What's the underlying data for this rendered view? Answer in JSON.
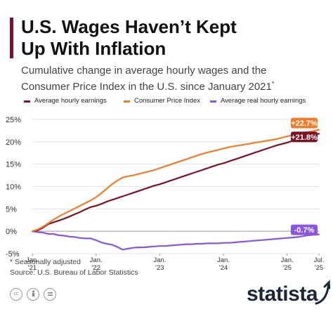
{
  "header": {
    "title_line1": "U.S. Wages Haven’t Kept",
    "title_line2": "Up With Inflation",
    "subtitle_line1": "Cumulative change in average hourly wages and the",
    "subtitle_line2": "Consumer Price Index in the U.S. since January 2021",
    "subtitle_mark": "*"
  },
  "colors": {
    "accent_bar": "#7b1326",
    "wages": "#7b1326",
    "cpi": "#f07c2b",
    "real": "#8a55e0"
  },
  "chart_data": {
    "type": "line",
    "title": "U.S. Wages Haven’t Kept Up With Inflation",
    "subtitle": "Cumulative change in average hourly wages and the Consumer Price Index in the U.S. since January 2021*",
    "xlabel": "",
    "ylabel": "",
    "ylim": [
      -5,
      25
    ],
    "yticks": [
      -5,
      0,
      5,
      10,
      15,
      20,
      25
    ],
    "ytick_labels": [
      "-5%",
      "0%",
      "5%",
      "10%",
      "15%",
      "20%",
      "25%"
    ],
    "xticks": [
      {
        "x": 0,
        "label": [
          "Jan.",
          "'21"
        ]
      },
      {
        "x": 12,
        "label": [
          "Jan.",
          "'22"
        ]
      },
      {
        "x": 24,
        "label": [
          "Jan.",
          "'23"
        ]
      },
      {
        "x": 36,
        "label": [
          "Jan.",
          "'24"
        ]
      },
      {
        "x": 48,
        "label": [
          "Jan.",
          "'25"
        ]
      },
      {
        "x": 54,
        "label": [
          "Jul.",
          "'25"
        ]
      }
    ],
    "x_range": [
      0,
      54
    ],
    "grid": true,
    "legend_position": "top",
    "series": [
      {
        "name": "Average hourly earnings",
        "color": "#7b1326",
        "values": [
          0,
          0.2,
          0.8,
          1.6,
          2.0,
          2.4,
          2.8,
          3.3,
          3.8,
          4.3,
          4.9,
          5.4,
          5.7,
          6.1,
          6.6,
          7.0,
          7.4,
          7.8,
          8.2,
          8.6,
          9.0,
          9.4,
          9.8,
          10.2,
          10.5,
          10.9,
          11.3,
          11.7,
          12.1,
          12.5,
          12.9,
          13.3,
          13.7,
          14.1,
          14.5,
          14.9,
          15.2,
          15.6,
          16.0,
          16.4,
          16.8,
          17.2,
          17.6,
          18.0,
          18.4,
          18.8,
          19.2,
          19.5,
          19.8,
          20.2,
          20.6,
          21.0,
          21.3,
          21.6,
          21.8
        ],
        "end_label": "+21.8%"
      },
      {
        "name": "Consumer Price Index",
        "color": "#f07c2b",
        "values": [
          0,
          0.4,
          1.0,
          1.8,
          2.6,
          3.3,
          3.9,
          4.5,
          5.1,
          5.7,
          6.3,
          6.9,
          7.6,
          8.5,
          9.5,
          10.5,
          11.3,
          12.0,
          12.3,
          12.5,
          12.8,
          13.1,
          13.4,
          13.7,
          14.1,
          14.5,
          14.9,
          15.3,
          15.7,
          16.1,
          16.5,
          16.9,
          17.3,
          17.6,
          17.9,
          18.2,
          18.5,
          18.8,
          19.0,
          19.2,
          19.4,
          19.6,
          19.8,
          20.0,
          20.2,
          20.4,
          20.6,
          20.9,
          21.2,
          21.5,
          21.8,
          22.0,
          22.2,
          22.4,
          22.7
        ],
        "end_label": "+22.7%"
      },
      {
        "name": "Average real hourly earnings",
        "color": "#8a55e0",
        "values": [
          0,
          -0.2,
          -0.3,
          -0.6,
          -0.6,
          -0.9,
          -1.0,
          -1.2,
          -1.3,
          -1.5,
          -1.6,
          -1.6,
          -2.0,
          -2.5,
          -2.8,
          -3.0,
          -3.5,
          -4.1,
          -3.9,
          -3.7,
          -3.6,
          -3.6,
          -3.5,
          -3.4,
          -3.3,
          -3.3,
          -3.2,
          -3.1,
          -3.0,
          -2.9,
          -2.9,
          -2.8,
          -2.8,
          -2.7,
          -2.7,
          -2.7,
          -2.6,
          -2.6,
          -2.5,
          -2.4,
          -2.3,
          -2.2,
          -2.1,
          -2.0,
          -1.9,
          -1.8,
          -1.7,
          -1.6,
          -1.5,
          -1.4,
          -1.3,
          -1.1,
          -0.9,
          -0.8,
          -0.7
        ],
        "end_label": "-0.7%"
      }
    ]
  },
  "footnote": {
    "line1": "* Seasonally adjusted",
    "line2": "Source: U.S. Bureau of Labor Statistics"
  },
  "footer": {
    "brand": "statista",
    "icons": [
      "cc-icon",
      "person-icon",
      "equals-icon"
    ]
  }
}
